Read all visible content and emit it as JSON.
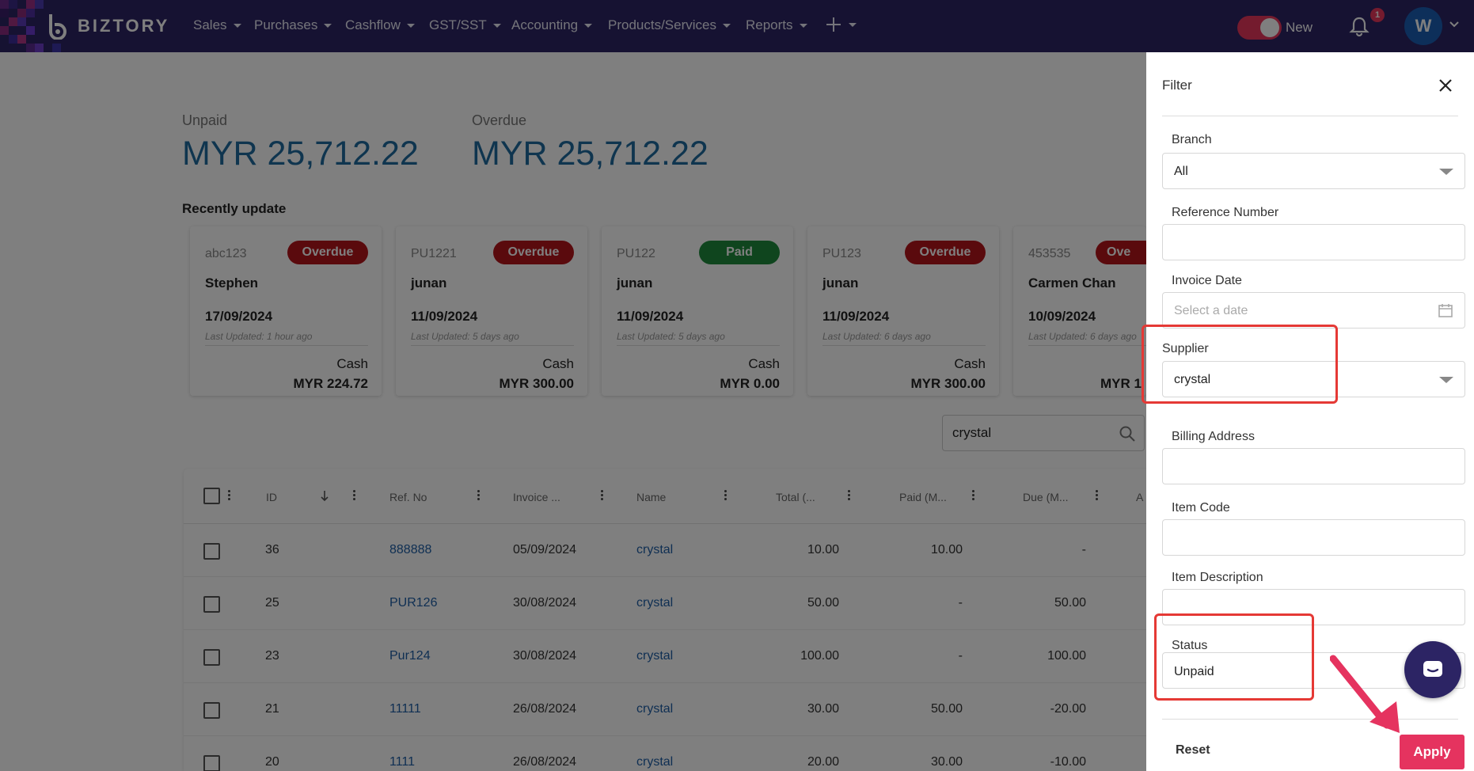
{
  "nav": {
    "brand": "BIZTORY",
    "items": [
      "Sales",
      "Purchases",
      "Cashflow",
      "GST/SST",
      "Accounting",
      "Products/Services",
      "Reports"
    ],
    "toggle_label": "New",
    "notification_count": "1",
    "avatar_initial": "W"
  },
  "summary": {
    "unpaid_label": "Unpaid",
    "unpaid_value": "MYR 25,712.22",
    "overdue_label": "Overdue",
    "overdue_value": "MYR 25,712.22"
  },
  "recent_title": "Recently update",
  "cards": [
    {
      "ref": "abc123",
      "status": "Overdue",
      "name": "Stephen",
      "date": "17/09/2024",
      "updated": "Last Updated: 1 hour ago",
      "method": "Cash",
      "amount": "MYR 224.72"
    },
    {
      "ref": "PU1221",
      "status": "Overdue",
      "name": "junan",
      "date": "11/09/2024",
      "updated": "Last Updated: 5 days ago",
      "method": "Cash",
      "amount": "MYR 300.00"
    },
    {
      "ref": "PU122",
      "status": "Paid",
      "name": "junan",
      "date": "11/09/2024",
      "updated": "Last Updated: 5 days ago",
      "method": "Cash",
      "amount": "MYR 0.00"
    },
    {
      "ref": "PU123",
      "status": "Overdue",
      "name": "junan",
      "date": "11/09/2024",
      "updated": "Last Updated: 6 days ago",
      "method": "Cash",
      "amount": "MYR 300.00"
    },
    {
      "ref": "453535",
      "status": "Ove",
      "name": "Carmen Chan",
      "date": "10/09/2024",
      "updated": "Last Updated: 6 days ago",
      "method": "",
      "amount": "MYR 1"
    }
  ],
  "colors": {
    "overdue": "#b5141b",
    "paid": "#1e8a3c"
  },
  "search": {
    "value": "crystal"
  },
  "table": {
    "headers": [
      "ID",
      "Ref. No",
      "Invoice ...",
      "Name",
      "Total (...",
      "Paid (M...",
      "Due (M...",
      "A"
    ],
    "rows": [
      {
        "id": "36",
        "ref": "888888",
        "date": "05/09/2024",
        "name": "crystal",
        "total": "10.00",
        "paid": "10.00",
        "due": "-"
      },
      {
        "id": "25",
        "ref": "PUR126",
        "date": "30/08/2024",
        "name": "crystal",
        "total": "50.00",
        "paid": "-",
        "due": "50.00"
      },
      {
        "id": "23",
        "ref": "Pur124",
        "date": "30/08/2024",
        "name": "crystal",
        "total": "100.00",
        "paid": "-",
        "due": "100.00"
      },
      {
        "id": "21",
        "ref": "11111",
        "date": "26/08/2024",
        "name": "crystal",
        "total": "30.00",
        "paid": "50.00",
        "due": "-20.00"
      },
      {
        "id": "20",
        "ref": "1111",
        "date": "26/08/2024",
        "name": "crystal",
        "total": "20.00",
        "paid": "30.00",
        "due": "-10.00"
      }
    ]
  },
  "filter": {
    "title": "Filter",
    "branch_label": "Branch",
    "branch_value": "All",
    "reference_label": "Reference Number",
    "invoice_date_label": "Invoice Date",
    "invoice_date_placeholder": "Select a date",
    "supplier_label": "Supplier",
    "supplier_value": "crystal",
    "billing_label": "Billing Address",
    "item_code_label": "Item Code",
    "item_desc_label": "Item Description",
    "status_label": "Status",
    "status_value": "Unpaid",
    "reset_label": "Reset",
    "apply_label": "Apply"
  }
}
